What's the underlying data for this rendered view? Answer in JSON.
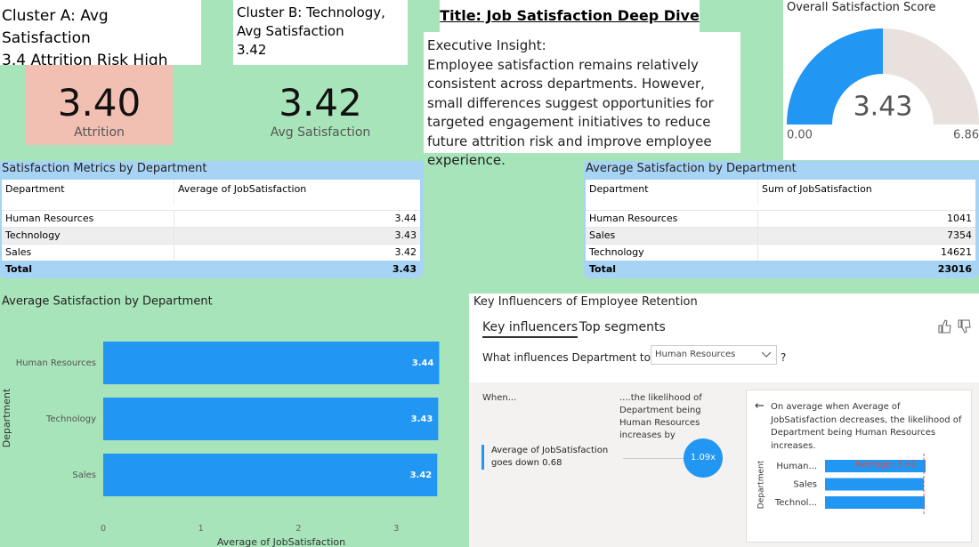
{
  "cluster_a": {
    "lines": [
      "Cluster A: Avg Satisfaction",
      "3.4 Attrition Risk High"
    ]
  },
  "cluster_b": {
    "lines": [
      "Cluster B: Technology,",
      "Avg Satisfaction",
      "3.42"
    ]
  },
  "attrition_card": {
    "value": "3.40",
    "label": "Attrition"
  },
  "satisfaction_card": {
    "value": "3.42",
    "label": "Avg Satisfaction"
  },
  "title": "Title: Job Satisfaction Deep Dive",
  "insight": {
    "heading": "Executive Insight:",
    "text": "Employee satisfaction remains relatively consistent across departments. However, small differences suggest opportunities for targeted engagement initiatives to reduce future attrition risk and improve employee experience."
  },
  "gauge": {
    "title": "Overall Satisfaction Score",
    "value": 3.43,
    "min": {
      "value": 0,
      "label": "0.00"
    },
    "max": 6.86,
    "color": "#2196f3",
    "track_color": "#e8e1dd"
  },
  "table_average": {
    "title": "Satisfaction Metrics by Department",
    "columns": [
      "Department",
      "Average of JobSatisfaction"
    ],
    "rows": [
      [
        "Human Resources",
        3.44
      ],
      [
        "Technology",
        3.43
      ],
      [
        "Sales",
        3.42
      ]
    ],
    "total": [
      "Total",
      3.43
    ]
  },
  "table_sum": {
    "title": "Average Satisfaction by Department",
    "columns": [
      "Department",
      "Sum of JobSatisfaction"
    ],
    "rows": [
      [
        "Human Resources",
        1041
      ],
      [
        "Sales",
        7354
      ],
      [
        "Technology",
        14621
      ]
    ],
    "total": [
      "Total",
      23016
    ]
  },
  "bar_chart": {
    "type": "bar",
    "title": "Average Satisfaction by Department",
    "categories": [
      "Human Resources",
      "Technology",
      "Sales"
    ],
    "values": [
      3.44,
      3.43,
      3.42
    ],
    "color": "#2196f3",
    "xlim": [
      0,
      3.7
    ],
    "xticks": [
      0,
      1,
      2,
      3
    ],
    "xlabel": "Average of JobSatisfaction",
    "ylabel": "Department"
  },
  "key_influencers": {
    "title": "Key Influencers of Employee Retention",
    "tabs": [
      "Key influencers",
      "Top segments"
    ],
    "question": "What influences Department to be",
    "dropdown": "Human Resources",
    "question_mark": "?",
    "when": "When...",
    "likelihood": "....the likelihood of Department being Human Resources increases by",
    "factor": "Average of JobSatisfaction goes down 0.68",
    "multiplier": "1.09x",
    "detail": "On average when Average of JobSatisfaction decreases, the likelihood of Department being Human Resources increases.",
    "mini_chart": {
      "categories": [
        "Human...",
        "Sales",
        "Technol..."
      ],
      "values": [
        3.44,
        3.42,
        3.43
      ],
      "xlim": [
        2.3,
        3.44
      ],
      "color": "#2196f3",
      "ylabel": "Department",
      "reference": {
        "value": 3.42,
        "label": "Average: 3.42"
      }
    }
  }
}
